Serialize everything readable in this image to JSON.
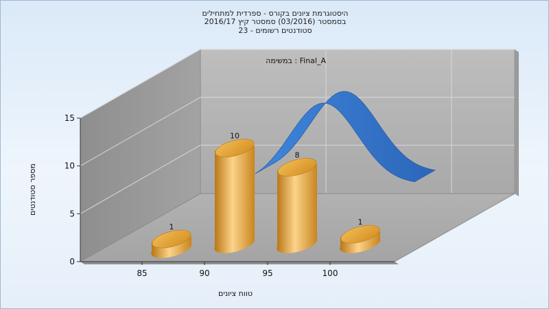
{
  "chart_data": {
    "type": "bar",
    "title_lines": [
      "היסטוגרמת ציונים בקורס - ספרדית למתחילים",
      "בסמסטר  (03/2016)  סמסטר קיץ 2016/17",
      "סטודנטים רשומים - 23"
    ],
    "legend_label": "במשימה : Final_A",
    "xlabel": "טווח ציונים",
    "ylabel": "מספר סטודנטים",
    "ylim": [
      0,
      15
    ],
    "y_ticks": [
      0,
      5,
      10,
      15
    ],
    "x_ticks": [
      "85",
      "90",
      "95",
      "100"
    ],
    "categories": [
      "85",
      "90",
      "95",
      "100"
    ],
    "values": [
      1,
      10,
      8,
      1
    ],
    "data_labels": [
      "1",
      "10",
      "8",
      "1"
    ],
    "curve": "normal-distribution",
    "colors": {
      "bars": "#e8a640",
      "curve": "#3375c9"
    }
  }
}
